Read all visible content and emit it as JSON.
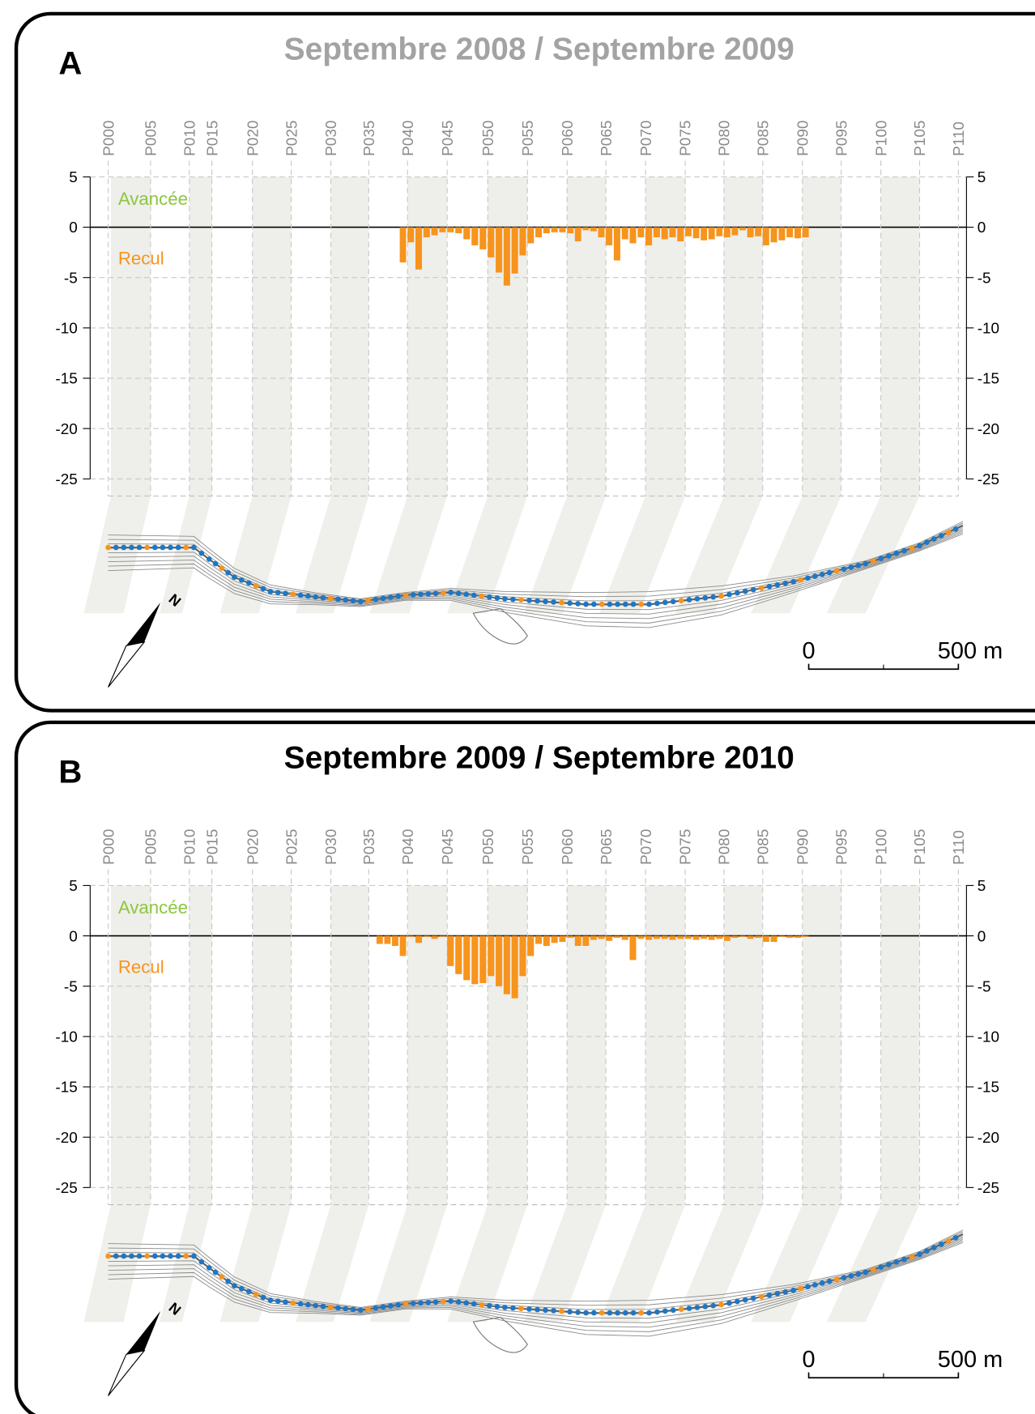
{
  "chart_data": [
    {
      "type": "bar",
      "label": "A",
      "title": "Septembre 2008 / Septembre 2009",
      "title_color": "#a3a3a3",
      "annotations": [
        "Avancée",
        "Recul"
      ],
      "scale_labels": [
        "0",
        "500 m"
      ],
      "north_label": "N",
      "color": "#f7941d",
      "grid": true,
      "ylim": [
        -25,
        5
      ],
      "yticks": [
        5,
        0,
        -5,
        -10,
        -15,
        -20,
        -25
      ],
      "categories": [
        "P000",
        null,
        null,
        null,
        null,
        "P005",
        null,
        null,
        null,
        null,
        "P010",
        null,
        null,
        null,
        null,
        "P015",
        null,
        null,
        null,
        null,
        "P020",
        null,
        null,
        null,
        null,
        "P025",
        null,
        null,
        null,
        null,
        "P030",
        null,
        null,
        null,
        null,
        "P035",
        null,
        null,
        null,
        null,
        "P040",
        null,
        null,
        null,
        null,
        "P045",
        null,
        null,
        null,
        null,
        "P050",
        null,
        null,
        null,
        null,
        "P055",
        null,
        null,
        null,
        null,
        "P060",
        null,
        null,
        null,
        null,
        "P065",
        null,
        null,
        null,
        null,
        "P070",
        null,
        null,
        null,
        null,
        "P075",
        null,
        null,
        null,
        null,
        "P080",
        null,
        null,
        null,
        null,
        "P085",
        null,
        null,
        null,
        null,
        "P090",
        null,
        null,
        null,
        null,
        "P095",
        null,
        null,
        null,
        null,
        "P100",
        null,
        null,
        null,
        null,
        "P105",
        null,
        null,
        null,
        null,
        "P110"
      ],
      "values": [
        null,
        null,
        null,
        null,
        null,
        null,
        null,
        null,
        null,
        null,
        null,
        null,
        null,
        null,
        null,
        null,
        null,
        null,
        null,
        null,
        null,
        null,
        null,
        null,
        null,
        null,
        null,
        null,
        null,
        null,
        null,
        null,
        null,
        null,
        null,
        null,
        null,
        null,
        null,
        -3.5,
        -1.5,
        -4.2,
        -1.0,
        -0.8,
        -0.5,
        -0.5,
        -0.6,
        -1.2,
        -1.8,
        -2.2,
        -3.0,
        -4.5,
        -5.8,
        -4.6,
        -2.8,
        -1.6,
        -1.0,
        -0.6,
        -0.5,
        -0.5,
        -0.6,
        -1.4,
        -0.3,
        -0.4,
        -1.0,
        -1.8,
        -3.3,
        -1.2,
        -1.6,
        -1.0,
        -1.8,
        -1.0,
        -1.2,
        -1.0,
        -1.4,
        -0.9,
        -1.1,
        -1.3,
        -1.2,
        -0.9,
        -1.0,
        -0.8,
        -0.3,
        -1.0,
        -0.9,
        -1.8,
        -1.5,
        -1.3,
        -1.0,
        -1.1,
        -1.0,
        null,
        null,
        null,
        null,
        null,
        null,
        null,
        null,
        null,
        null,
        null,
        null,
        null,
        null,
        null,
        null,
        null,
        null,
        null,
        null
      ]
    },
    {
      "type": "bar",
      "label": "B",
      "title": "Septembre 2009 / Septembre 2010",
      "title_color": "#000000",
      "annotations": [
        "Avancée",
        "Recul"
      ],
      "scale_labels": [
        "0",
        "500 m"
      ],
      "north_label": "N",
      "color": "#f7941d",
      "grid": true,
      "ylim": [
        -25,
        5
      ],
      "yticks": [
        5,
        0,
        -5,
        -10,
        -15,
        -20,
        -25
      ],
      "categories": [
        "P000",
        null,
        null,
        null,
        null,
        "P005",
        null,
        null,
        null,
        null,
        "P010",
        null,
        null,
        null,
        null,
        "P015",
        null,
        null,
        null,
        null,
        "P020",
        null,
        null,
        null,
        null,
        "P025",
        null,
        null,
        null,
        null,
        "P030",
        null,
        null,
        null,
        null,
        "P035",
        null,
        null,
        null,
        null,
        "P040",
        null,
        null,
        null,
        null,
        "P045",
        null,
        null,
        null,
        null,
        "P050",
        null,
        null,
        null,
        null,
        "P055",
        null,
        null,
        null,
        null,
        "P060",
        null,
        null,
        null,
        null,
        "P065",
        null,
        null,
        null,
        null,
        "P070",
        null,
        null,
        null,
        null,
        "P075",
        null,
        null,
        null,
        null,
        "P080",
        null,
        null,
        null,
        null,
        "P085",
        null,
        null,
        null,
        null,
        "P090",
        null,
        null,
        null,
        null,
        "P095",
        null,
        null,
        null,
        null,
        "P100",
        null,
        null,
        null,
        null,
        "P105",
        null,
        null,
        null,
        null,
        "P110"
      ],
      "values": [
        null,
        null,
        null,
        null,
        null,
        null,
        null,
        null,
        null,
        null,
        null,
        null,
        null,
        null,
        null,
        null,
        null,
        null,
        null,
        null,
        null,
        null,
        null,
        null,
        null,
        null,
        null,
        null,
        null,
        null,
        null,
        null,
        null,
        null,
        null,
        null,
        -0.8,
        -0.8,
        -1.0,
        -2.0,
        -0.1,
        -0.7,
        -0.1,
        -0.3,
        -0.1,
        -3.0,
        -3.8,
        -4.4,
        -4.8,
        -4.7,
        -4.0,
        -5.0,
        -5.8,
        -6.2,
        -4.0,
        -2.0,
        -0.8,
        -1.0,
        -0.7,
        -0.6,
        -0.2,
        -1.0,
        -1.0,
        -0.4,
        -0.3,
        -0.5,
        -0.2,
        -0.4,
        -2.4,
        -0.3,
        -0.4,
        -0.3,
        -0.3,
        -0.4,
        -0.3,
        -0.3,
        -0.4,
        -0.3,
        -0.4,
        -0.3,
        -0.5,
        -0.2,
        -0.1,
        -0.3,
        -0.2,
        -0.6,
        -0.6,
        -0.1,
        -0.2,
        -0.2,
        -0.1,
        null,
        null,
        null,
        null,
        null,
        null,
        null,
        null,
        null,
        null,
        null,
        null,
        null,
        null,
        null,
        null,
        null,
        null,
        null,
        null
      ]
    }
  ]
}
